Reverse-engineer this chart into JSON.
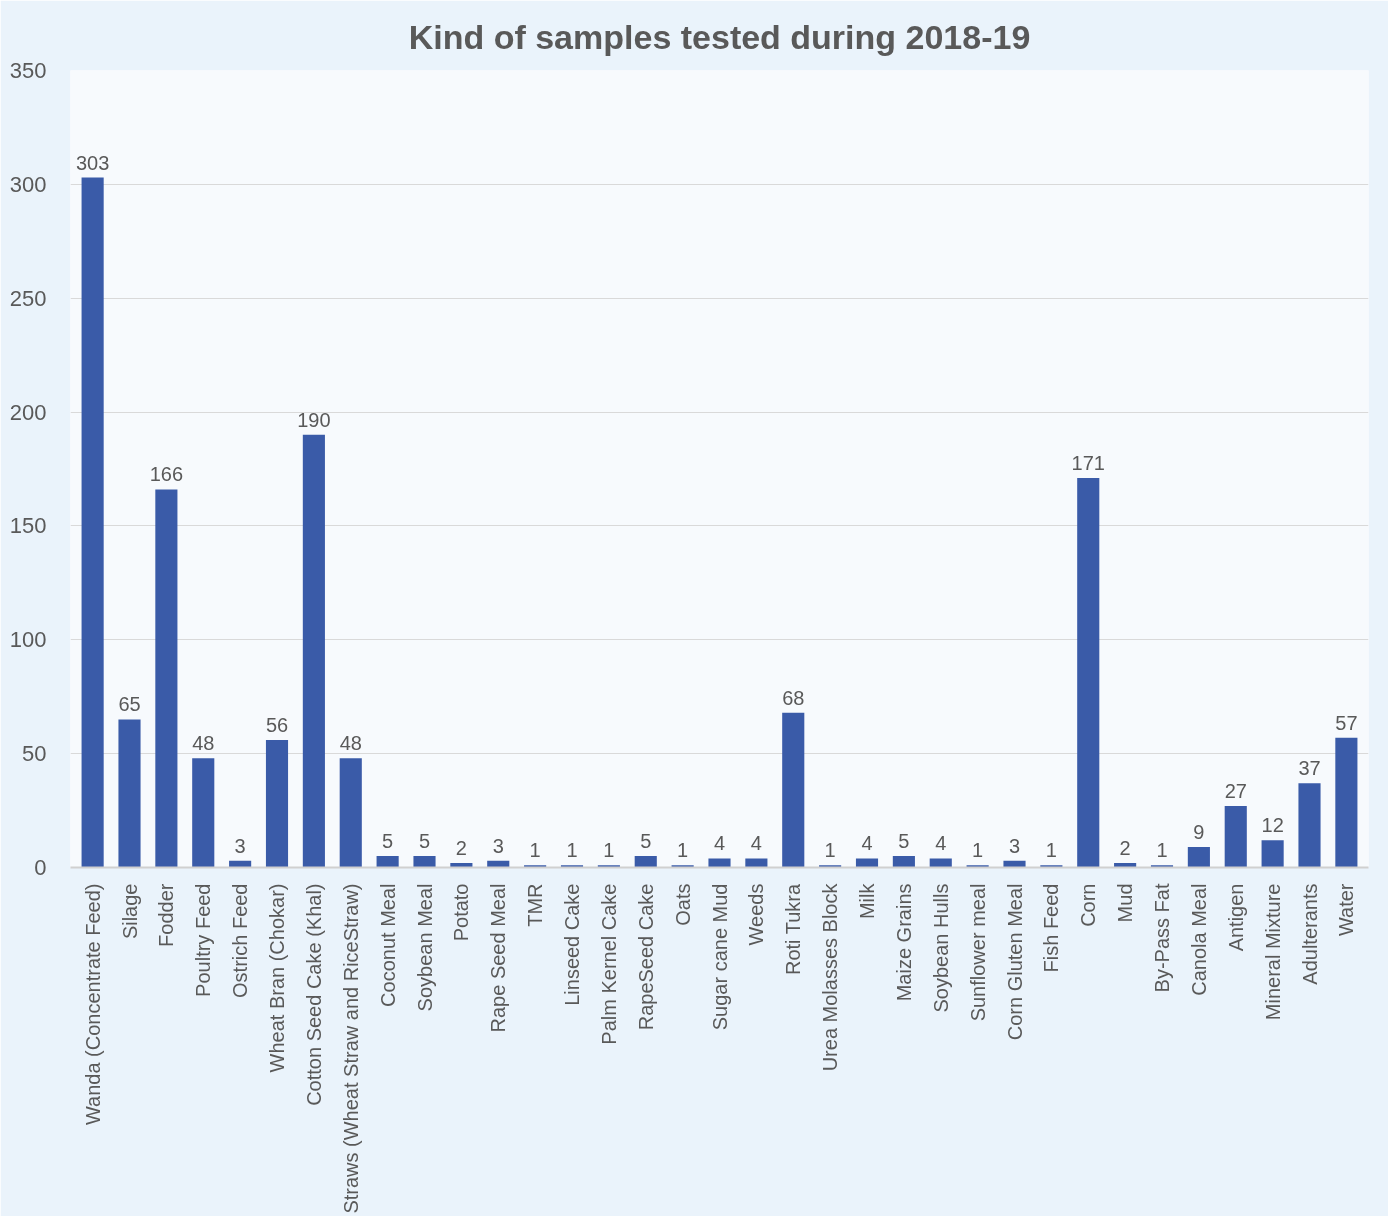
{
  "chart_data": {
    "type": "bar",
    "title": "Kind of samples tested during 2018-19",
    "categories": [
      "Wanda (Concentrate Feed)",
      "Silage",
      "Fodder",
      "Poultry Feed",
      "Ostrich Feed",
      "Wheat Bran (Chokar)",
      "Cotton Seed Cake (Khal)",
      "Straws (Wheat Straw and RiceStraw)",
      "Coconut Meal",
      "Soybean Meal",
      "Potato",
      "Rape Seed Meal",
      "TMR",
      "Linseed Cake",
      "Palm Kernel Cake",
      "RapeSeed Cake",
      "Oats",
      "Sugar cane Mud",
      "Weeds",
      "Roti Tukra",
      "Urea Molasses Block",
      "Milk",
      "Maize Grains",
      "Soybean Hulls",
      "Sunflower meal",
      "Corn Gluten Meal",
      "Fish Feed",
      "Corn",
      "Mud",
      "By-Pass Fat",
      "Canola Meal",
      "Antigen",
      "Mineral Mixture",
      "Adulterants",
      "Water"
    ],
    "values": [
      303,
      65,
      166,
      48,
      3,
      56,
      190,
      48,
      5,
      5,
      2,
      3,
      1,
      1,
      1,
      5,
      1,
      4,
      4,
      68,
      1,
      4,
      5,
      4,
      1,
      3,
      1,
      171,
      2,
      1,
      9,
      27,
      12,
      37,
      57
    ],
    "color": "#3a5ba8",
    "ylim": [
      0,
      350
    ],
    "yticks": [
      0,
      50,
      100,
      150,
      200,
      250,
      300,
      350
    ],
    "grid": "y",
    "data_labels": true
  }
}
